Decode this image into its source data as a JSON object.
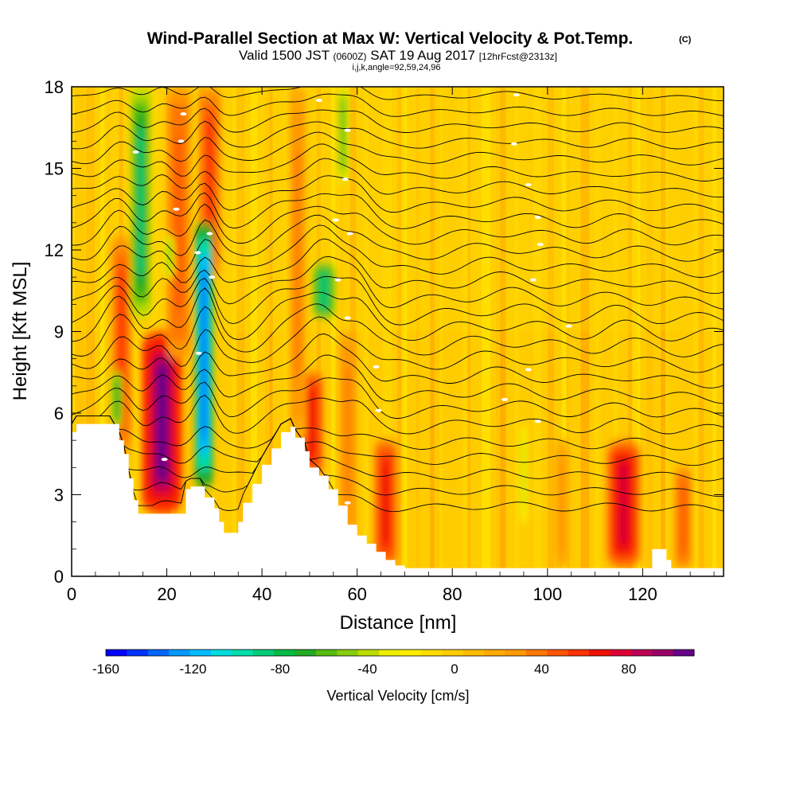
{
  "chart_data": {
    "type": "heatmap",
    "title": "Wind-Parallel Section at Max W: Vertical Velocity & Pot.Temp.",
    "title_mark": "(C)",
    "subtitle_parts": [
      "Valid 1500 JST",
      "(0600Z)",
      "SAT 19 Aug 2017",
      "[12hrFcst@2313z]"
    ],
    "subtitle2": "i,j,k,angle=92,59,24,96",
    "xlabel": "Distance [nm]",
    "ylabel": "Height [Kft MSL]",
    "xlim": [
      0,
      137
    ],
    "ylim": [
      0,
      18
    ],
    "xticks": [
      0,
      20,
      40,
      60,
      80,
      100,
      120
    ],
    "yticks": [
      0,
      3,
      6,
      9,
      12,
      15,
      18
    ],
    "colorbar": {
      "label": "Vertical Velocity [cm/s]",
      "range": [
        -160,
        110
      ],
      "ticks": [
        -160,
        -120,
        -80,
        -40,
        0,
        40,
        80
      ],
      "colors": [
        "#0000ff",
        "#0033ff",
        "#0066ff",
        "#0099ff",
        "#00bbff",
        "#00dddd",
        "#00ddaa",
        "#00cc77",
        "#00bb44",
        "#22aa22",
        "#55bb11",
        "#88cc11",
        "#bbdd00",
        "#eeee00",
        "#ffee00",
        "#ffdd00",
        "#ffcc00",
        "#ffbb00",
        "#ffaa00",
        "#ff9900",
        "#ff7700",
        "#ff5500",
        "#ff3300",
        "#ee1100",
        "#dd0033",
        "#bb0055",
        "#990066",
        "#660088"
      ]
    },
    "terrain_kft": [
      [
        0,
        5.3
      ],
      [
        1,
        5.6
      ],
      [
        6,
        5.6
      ],
      [
        8,
        5.6
      ],
      [
        10,
        5.0
      ],
      [
        11,
        4.5
      ],
      [
        12,
        3.6
      ],
      [
        13,
        2.8
      ],
      [
        14,
        2.3
      ],
      [
        17,
        2.3
      ],
      [
        23,
        2.3
      ],
      [
        24,
        3.2
      ],
      [
        25,
        3.3
      ],
      [
        27,
        3.3
      ],
      [
        28,
        2.9
      ],
      [
        30,
        2.5
      ],
      [
        31,
        2.0
      ],
      [
        32,
        1.6
      ],
      [
        35,
        2.0
      ],
      [
        36,
        2.7
      ],
      [
        38,
        3.4
      ],
      [
        40,
        4.1
      ],
      [
        42,
        4.7
      ],
      [
        44,
        5.3
      ],
      [
        46,
        5.5
      ],
      [
        47,
        5.1
      ],
      [
        49,
        4.6
      ],
      [
        50,
        4.0
      ],
      [
        52,
        3.7
      ],
      [
        54,
        3.2
      ],
      [
        56,
        2.6
      ],
      [
        58,
        1.9
      ],
      [
        60,
        1.5
      ],
      [
        62,
        1.2
      ],
      [
        64,
        0.9
      ],
      [
        66,
        0.6
      ],
      [
        68,
        0.4
      ],
      [
        70,
        0.3
      ],
      [
        121,
        0.3
      ],
      [
        122,
        1.0
      ],
      [
        124,
        1.0
      ],
      [
        125,
        0.6
      ],
      [
        126,
        0.3
      ],
      [
        137,
        0.3
      ]
    ],
    "updraft_cores": [
      {
        "x": 19,
        "z_bottom": 2.3,
        "z_top": 9.0,
        "width_nm": 3.5,
        "w": 105
      },
      {
        "x": 10.5,
        "z_bottom": 4.5,
        "z_top": 12.5,
        "width_nm": 1.8,
        "w": 55
      },
      {
        "x": 22.5,
        "z_bottom": 8.0,
        "z_top": 18.0,
        "width_nm": 2.0,
        "w": 50
      },
      {
        "x": 29,
        "z_bottom": 11.0,
        "z_top": 18.0,
        "width_nm": 2.0,
        "w": 60
      },
      {
        "x": 50.5,
        "z_bottom": 3.7,
        "z_top": 7.5,
        "width_nm": 2.0,
        "w": 70
      },
      {
        "x": 47.5,
        "z_bottom": 5.0,
        "z_top": 18.0,
        "width_nm": 1.5,
        "w": 35
      },
      {
        "x": 66,
        "z_bottom": 0.4,
        "z_top": 5.0,
        "width_nm": 2.0,
        "w": 65
      },
      {
        "x": 116,
        "z_bottom": 0.3,
        "z_top": 5.0,
        "width_nm": 3.0,
        "w": 80
      },
      {
        "x": 128.5,
        "z_bottom": 0.3,
        "z_top": 4.0,
        "width_nm": 1.5,
        "w": 50
      },
      {
        "x": 58,
        "z_bottom": 1.5,
        "z_top": 9.0,
        "width_nm": 1.5,
        "w": 35
      },
      {
        "x": 103,
        "z_bottom": 0.3,
        "z_top": 5.0,
        "width_nm": 1.2,
        "w": 30
      }
    ],
    "downdraft_cores": [
      {
        "x": 27.8,
        "z_bottom": 3.3,
        "z_top": 13.0,
        "width_nm": 1.6,
        "w": -140
      },
      {
        "x": 14.5,
        "z_bottom": 9.5,
        "z_top": 18.0,
        "width_nm": 1.8,
        "w": -85
      },
      {
        "x": 20.5,
        "z_bottom": 11.0,
        "z_top": 12.5,
        "width_nm": 1.0,
        "w": -50
      },
      {
        "x": 53,
        "z_bottom": 9.5,
        "z_top": 11.5,
        "width_nm": 2.0,
        "w": -90
      },
      {
        "x": 57,
        "z_bottom": 14.5,
        "z_top": 18.0,
        "width_nm": 1.0,
        "w": -55
      },
      {
        "x": 95,
        "z_bottom": 2.0,
        "z_top": 5.5,
        "width_nm": 0.6,
        "w": -40
      },
      {
        "x": 9.5,
        "z_bottom": 5.5,
        "z_top": 7.5,
        "width_nm": 1.0,
        "w": -70
      }
    ]
  }
}
